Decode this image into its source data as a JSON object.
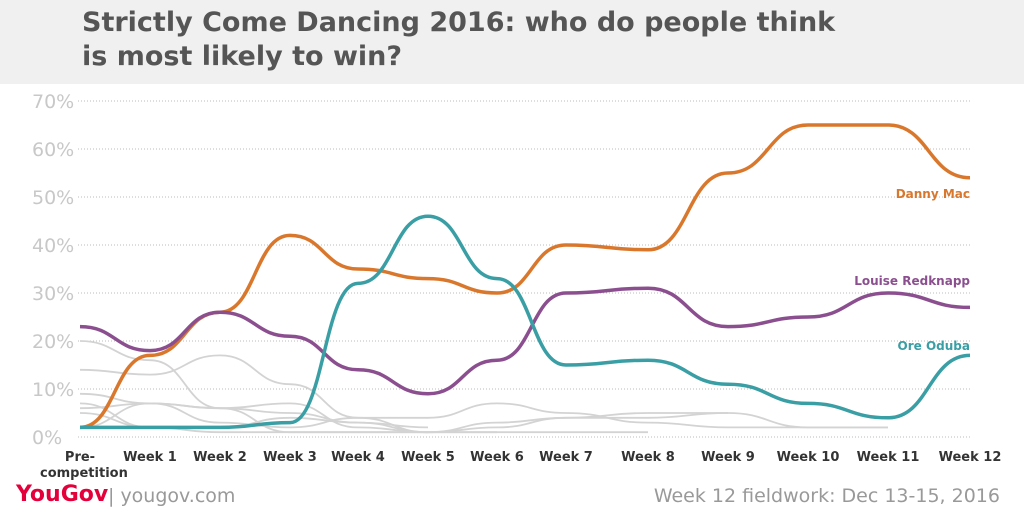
{
  "title": "Strictly Come Dancing 2016: who do people think is most likely to win?",
  "footer": {
    "logo": "YouGov",
    "site": "| yougov.com",
    "note": "Week 12 fieldwork: Dec 13-15, 2016"
  },
  "chart_data": {
    "type": "line",
    "categories": [
      "Pre-competition",
      "Week 1",
      "Week 2",
      "Week 3",
      "Week 4",
      "Week 5",
      "Week 6",
      "Week 7",
      "Week 8",
      "Week 9",
      "Week 10",
      "Week 11",
      "Week 12"
    ],
    "ylim": [
      0,
      70
    ],
    "yticks": [
      {
        "value": 0,
        "label": "0%"
      },
      {
        "value": 10,
        "label": "10%"
      },
      {
        "value": 20,
        "label": "20%"
      },
      {
        "value": 30,
        "label": "30%"
      },
      {
        "value": 40,
        "label": "40%"
      },
      {
        "value": 50,
        "label": "50%"
      },
      {
        "value": 60,
        "label": "60%"
      },
      {
        "value": 70,
        "label": "70%"
      }
    ],
    "grid": true,
    "series": [
      {
        "color": "#d3d3d3",
        "values": [
          20,
          16,
          6,
          5,
          3,
          2,
          null,
          null,
          null,
          null,
          null,
          null,
          null
        ]
      },
      {
        "color": "#d3d3d3",
        "values": [
          14,
          13,
          17,
          11,
          4,
          1,
          null,
          null,
          null,
          null,
          null,
          null,
          null
        ]
      },
      {
        "color": "#d3d3d3",
        "values": [
          9,
          7,
          6,
          7,
          2,
          1,
          1,
          null,
          null,
          null,
          null,
          null,
          null
        ]
      },
      {
        "color": "#d3d3d3",
        "values": [
          6,
          7,
          3,
          2,
          4,
          4,
          7,
          5,
          3,
          2,
          2,
          2,
          null
        ]
      },
      {
        "color": "#d3d3d3",
        "values": [
          5,
          2,
          2,
          4,
          3,
          1,
          3,
          4,
          5,
          5,
          2,
          2,
          null
        ]
      },
      {
        "color": "#d3d3d3",
        "values": [
          2,
          7,
          6,
          1,
          1,
          1,
          1,
          1,
          1,
          null,
          null,
          null,
          null
        ]
      },
      {
        "color": "#d3d3d3",
        "values": [
          7,
          2,
          1,
          1,
          1,
          1,
          2,
          4,
          4,
          5,
          null,
          null,
          null
        ]
      },
      {
        "name": "Danny Mac",
        "color": "#d9782d",
        "values": [
          2,
          17,
          26,
          42,
          35,
          33,
          30,
          40,
          39,
          55,
          65,
          65,
          54
        ]
      },
      {
        "name": "Louise Redknapp",
        "color": "#8b4f8f",
        "values": [
          23,
          18,
          26,
          21,
          14,
          9,
          16,
          30,
          31,
          23,
          25,
          30,
          27
        ]
      },
      {
        "name": "Ore Oduba",
        "color": "#3a9ea5",
        "values": [
          2,
          2,
          2,
          3,
          32,
          46,
          33,
          15,
          16,
          11,
          7,
          4,
          17
        ]
      }
    ]
  }
}
